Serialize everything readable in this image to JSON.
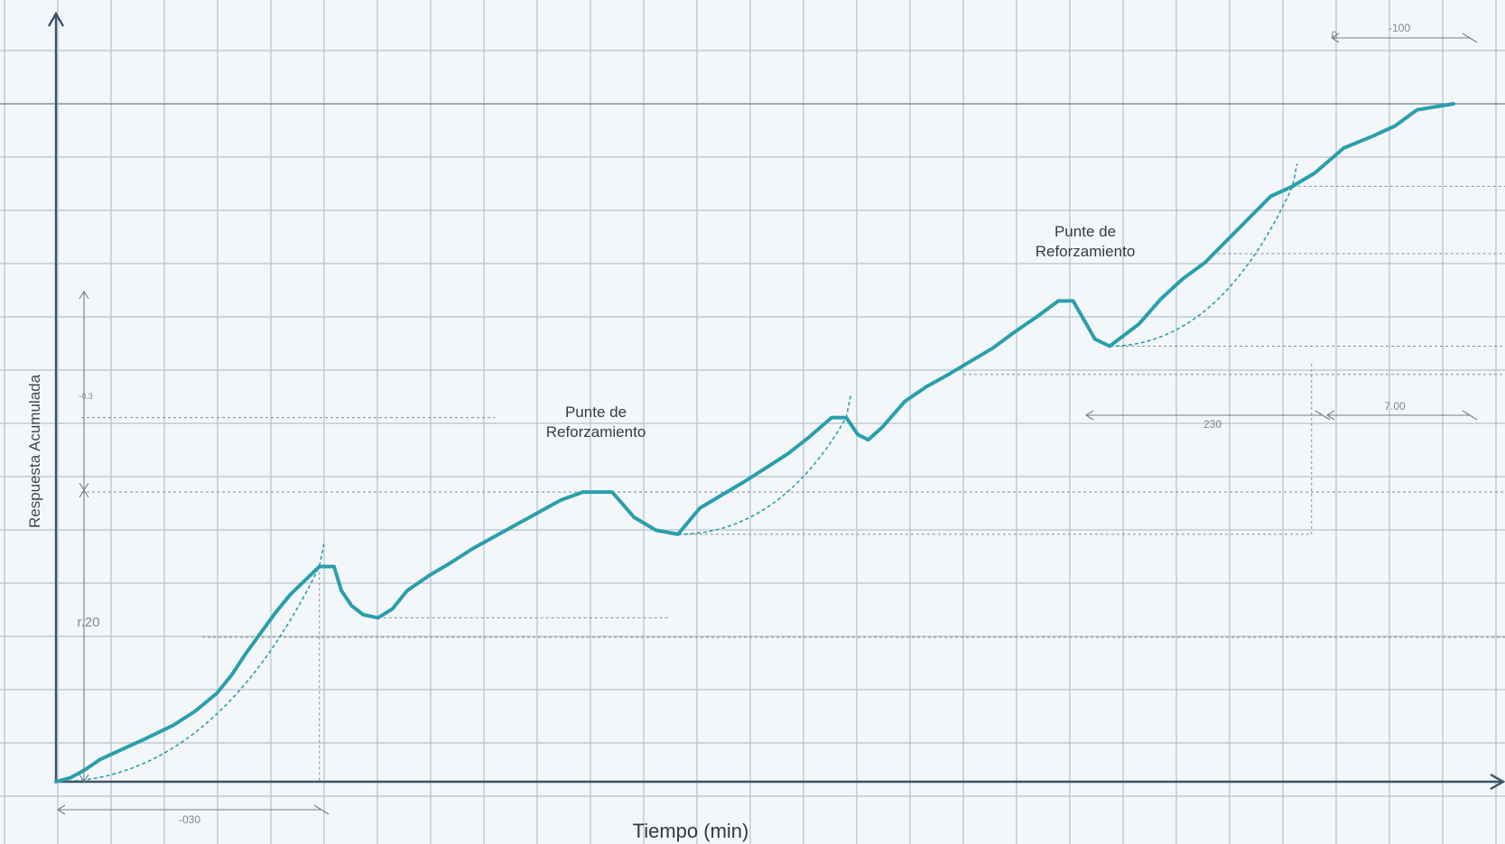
{
  "chart_data": {
    "type": "line",
    "title": "",
    "xlabel": "Tiempo (min)",
    "ylabel": "Respuesta Acumulada",
    "grid": true,
    "annotations": [
      {
        "text_line1": "Punte de",
        "text_line2": "Reforzamiento"
      },
      {
        "text_line1": "Punte de",
        "text_line2": "Reforzamiento"
      }
    ],
    "dimension_labels": {
      "bottom_left": "-030",
      "left_vertical": "r.20",
      "left_vertical_small": "-0.3",
      "top_right": "-100",
      "mid_right_a": "230",
      "mid_right_b": "7.00",
      "top_right_start": "0"
    },
    "series": [
      {
        "points": [
          [
            0,
            0
          ],
          [
            10,
            4
          ],
          [
            20,
            12
          ],
          [
            30,
            22
          ],
          [
            45,
            32
          ],
          [
            60,
            42
          ],
          [
            80,
            56
          ],
          [
            95,
            70
          ],
          [
            110,
            88
          ],
          [
            120,
            106
          ],
          [
            130,
            128
          ],
          [
            140,
            148
          ],
          [
            150,
            168
          ],
          [
            160,
            186
          ],
          [
            170,
            200
          ],
          [
            180,
            214
          ],
          [
            190,
            214
          ],
          [
            195,
            190
          ],
          [
            202,
            175
          ],
          [
            210,
            166
          ],
          [
            220,
            163
          ],
          [
            230,
            172
          ],
          [
            240,
            190
          ],
          [
            255,
            205
          ],
          [
            270,
            218
          ],
          [
            285,
            232
          ],
          [
            300,
            244
          ],
          [
            315,
            256
          ],
          [
            330,
            268
          ],
          [
            345,
            280
          ],
          [
            360,
            288
          ],
          [
            380,
            288
          ],
          [
            395,
            263
          ],
          [
            410,
            250
          ],
          [
            425,
            246
          ],
          [
            440,
            272
          ],
          [
            455,
            285
          ],
          [
            470,
            298
          ],
          [
            485,
            312
          ],
          [
            500,
            326
          ],
          [
            515,
            343
          ],
          [
            530,
            362
          ],
          [
            540,
            362
          ],
          [
            548,
            345
          ],
          [
            555,
            340
          ],
          [
            565,
            353
          ],
          [
            580,
            378
          ],
          [
            595,
            393
          ],
          [
            610,
            405
          ],
          [
            625,
            418
          ],
          [
            640,
            431
          ],
          [
            655,
            447
          ],
          [
            670,
            462
          ],
          [
            685,
            478
          ],
          [
            695,
            478
          ],
          [
            710,
            440
          ],
          [
            720,
            433
          ],
          [
            740,
            455
          ],
          [
            755,
            480
          ],
          [
            770,
            500
          ],
          [
            785,
            516
          ],
          [
            800,
            538
          ],
          [
            815,
            560
          ],
          [
            830,
            582
          ],
          [
            845,
            592
          ],
          [
            860,
            605
          ],
          [
            880,
            630
          ],
          [
            900,
            642
          ],
          [
            915,
            652
          ],
          [
            930,
            668
          ],
          [
            955,
            674
          ]
        ],
        "guides": [
          {
            "from": [
              0,
              0
            ],
            "to": [
              180,
              214
            ]
          },
          {
            "from": [
              425,
              246
            ],
            "to": [
              540,
              362
            ]
          },
          {
            "from": [
              720,
              433
            ],
            "to": [
              845,
              592
            ]
          }
        ]
      }
    ],
    "colors": {
      "series": "#2a9fac",
      "grid": "#b3c1cd",
      "axis": "#3c5368"
    }
  }
}
